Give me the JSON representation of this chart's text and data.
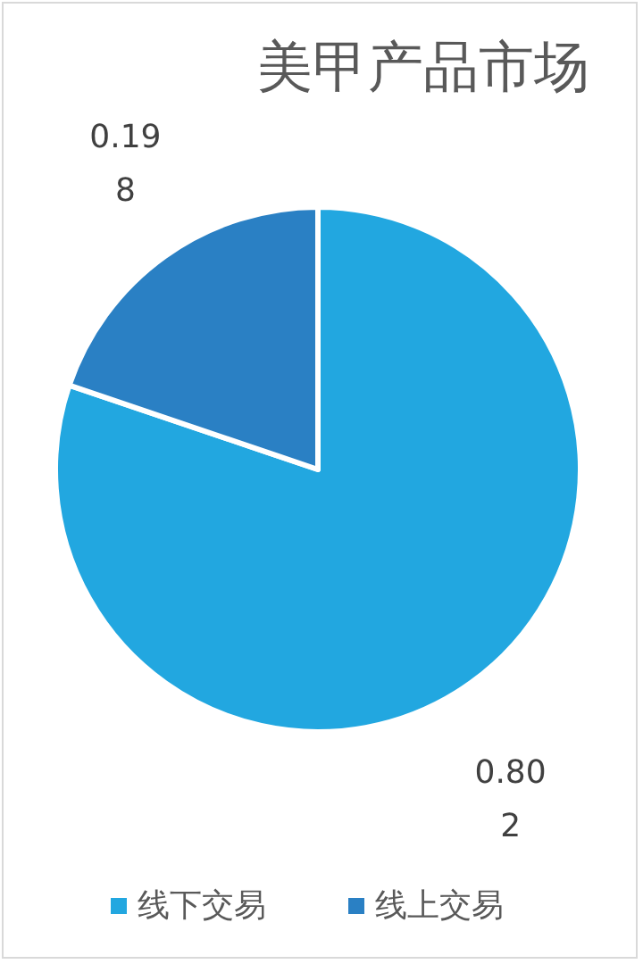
{
  "chart_data": {
    "type": "pie",
    "title": "美甲产品市场",
    "categories": [
      "线下交易",
      "线上交易"
    ],
    "values": [
      0.802,
      0.198
    ],
    "colors": [
      "#22a7e0",
      "#2a80c4"
    ],
    "data_labels": true,
    "legend": "bottom"
  }
}
